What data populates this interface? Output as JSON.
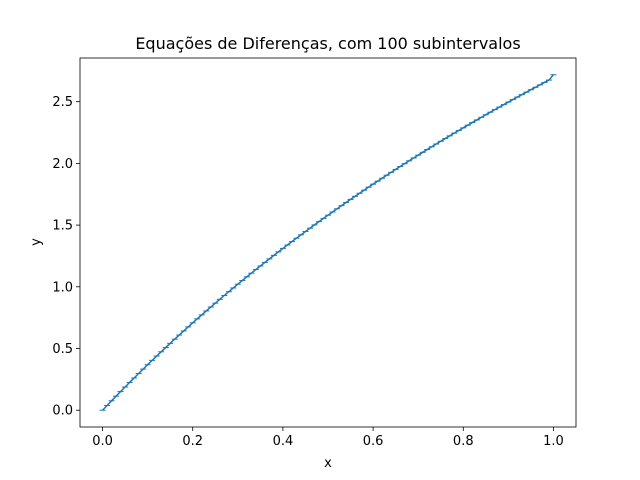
{
  "chart_data": {
    "type": "line",
    "title": "Equações de Diferenças, com 100 subintervalos",
    "xlabel": "x",
    "ylabel": "y",
    "xlim": [
      -0.05,
      1.05
    ],
    "ylim": [
      -0.136,
      2.854
    ],
    "xticks": [
      "0.0",
      "0.2",
      "0.4",
      "0.6",
      "0.8",
      "1.0"
    ],
    "yticks": [
      "0.0",
      "0.5",
      "1.0",
      "1.5",
      "2.0",
      "2.5"
    ],
    "grid": false,
    "legend": "none",
    "marker": "_",
    "color": "#1f77b4",
    "series": [
      {
        "x": [
          0.0,
          0.01,
          0.02,
          0.03,
          0.04,
          0.05,
          0.06,
          0.07,
          0.08,
          0.09,
          0.1,
          0.11,
          0.12,
          0.13,
          0.14,
          0.15,
          0.16,
          0.17,
          0.18,
          0.19,
          0.2,
          0.21,
          0.22,
          0.23,
          0.24,
          0.25,
          0.26,
          0.27,
          0.28,
          0.29,
          0.3,
          0.31,
          0.32,
          0.33,
          0.34,
          0.35,
          0.36,
          0.37,
          0.38,
          0.39,
          0.4,
          0.41,
          0.42,
          0.43,
          0.44,
          0.45,
          0.46,
          0.47,
          0.48,
          0.49,
          0.5,
          0.51,
          0.52,
          0.53,
          0.54,
          0.55,
          0.56,
          0.57,
          0.58,
          0.59,
          0.6,
          0.61,
          0.62,
          0.63,
          0.64,
          0.65,
          0.66,
          0.67,
          0.68,
          0.69,
          0.7,
          0.71,
          0.72,
          0.73,
          0.74,
          0.75,
          0.76,
          0.77,
          0.78,
          0.79,
          0.8,
          0.81,
          0.82,
          0.83,
          0.84,
          0.85,
          0.86,
          0.87,
          0.88,
          0.89,
          0.9,
          0.91,
          0.92,
          0.93,
          0.94,
          0.95,
          0.96,
          0.97,
          0.98,
          0.99,
          1.0
        ],
        "y": [
          0.0,
          0.0383,
          0.0763,
          0.1139,
          0.1512,
          0.1882,
          0.2249,
          0.2613,
          0.2974,
          0.3332,
          0.3687,
          0.4039,
          0.4388,
          0.4734,
          0.5077,
          0.5417,
          0.5755,
          0.609,
          0.6422,
          0.6752,
          0.7079,
          0.7403,
          0.7725,
          0.8044,
          0.8361,
          0.8675,
          0.8987,
          0.9296,
          0.9603,
          0.9908,
          1.021,
          1.051,
          1.0808,
          1.1103,
          1.1396,
          1.1687,
          1.1976,
          1.2263,
          1.2547,
          1.283,
          1.311,
          1.3388,
          1.3664,
          1.3938,
          1.4211,
          1.4481,
          1.4749,
          1.5016,
          1.528,
          1.5543,
          1.5804,
          1.6063,
          1.632,
          1.6576,
          1.6829,
          1.7081,
          1.7332,
          1.758,
          1.7827,
          1.8073,
          1.8316,
          1.8558,
          1.8799,
          1.9038,
          1.9275,
          1.9511,
          1.9746,
          1.9979,
          2.021,
          2.044,
          2.0669,
          2.0897,
          2.1122,
          2.1347,
          2.157,
          2.1792,
          2.2013,
          2.2232,
          2.245,
          2.2666,
          2.2882,
          2.3096,
          2.3309,
          2.352,
          2.3731,
          2.394,
          2.4148,
          2.4355,
          2.4561,
          2.4765,
          2.4969,
          2.5171,
          2.5373,
          2.5573,
          2.5772,
          2.597,
          2.6167,
          2.6363,
          2.6558,
          2.6752,
          2.7183
        ]
      }
    ]
  }
}
